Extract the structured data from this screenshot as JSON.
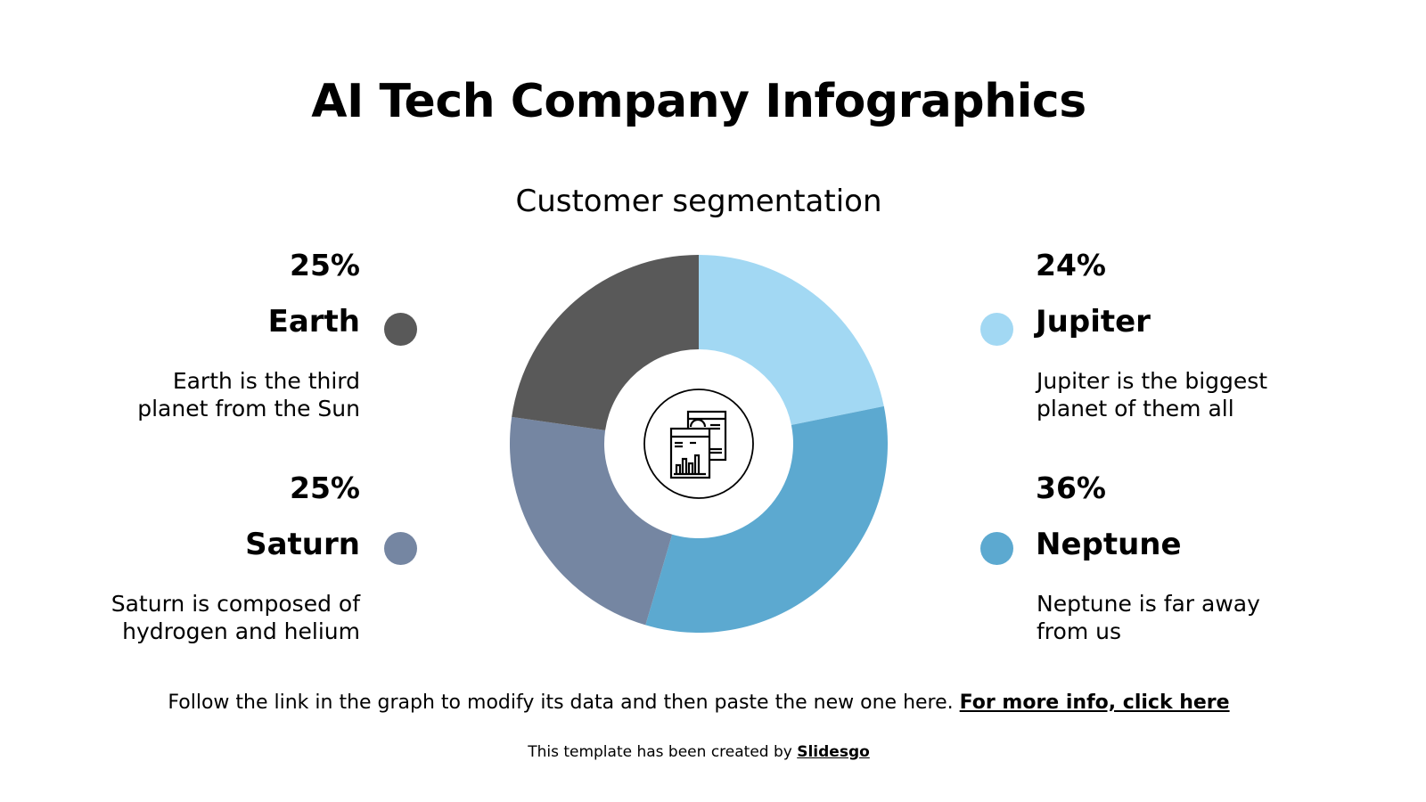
{
  "title": "AI Tech Company Infographics",
  "footer": {
    "text": "Follow the link in the graph to modify its data and then paste the new one here.",
    "link": "For more info, click here"
  },
  "credit": {
    "text": "This template has been created by",
    "link": "Slidesgo"
  },
  "center_icon": "browser-analytics-icon",
  "chart_data": {
    "type": "pie",
    "variant": "donut",
    "title": "Customer segmentation",
    "direction": "clockwise-from-top",
    "slices": [
      {
        "name": "Jupiter",
        "value": 24,
        "label": "24%",
        "description": "Jupiter is the biggest planet of them all",
        "color": "#a2d8f3"
      },
      {
        "name": "Neptune",
        "value": 36,
        "label": "36%",
        "description": "Neptune is far away from us",
        "color": "#5ca9d0"
      },
      {
        "name": "Saturn",
        "value": 25,
        "label": "25%",
        "description": "Saturn is composed of hydrogen and helium",
        "color": "#7586a2"
      },
      {
        "name": "Earth",
        "value": 25,
        "label": "25%",
        "description": "Earth is the third planet from the Sun",
        "color": "#595959"
      }
    ]
  }
}
